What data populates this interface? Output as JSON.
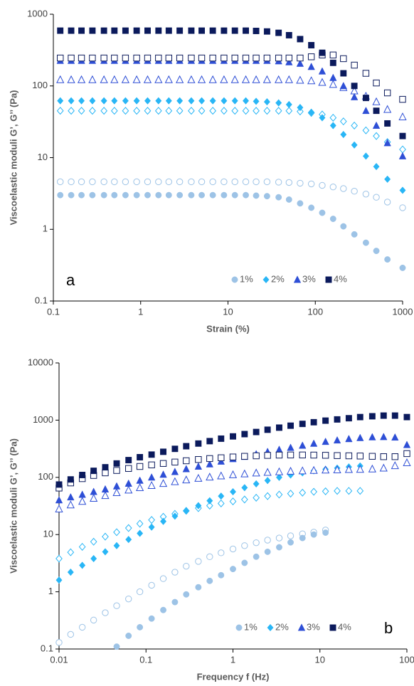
{
  "chart_data": [
    {
      "type": "scatter",
      "panel_label": "a",
      "xlabel": "Strain (%)",
      "ylabel": "Viscoelastic moduli G’, G’’ (Pa)",
      "log_x": true,
      "log_y": true,
      "legend": "lower right",
      "xlim": [
        0.1,
        1000
      ],
      "ylim": [
        0.1,
        1000
      ],
      "xticks": [
        0.1,
        1,
        10,
        100,
        1000
      ],
      "yticks": [
        0.1,
        1,
        10,
        100,
        1000
      ],
      "x": [
        0.12,
        0.16,
        0.21,
        0.28,
        0.38,
        0.5,
        0.67,
        0.9,
        1.2,
        1.6,
        2.1,
        2.8,
        3.8,
        5,
        6.7,
        9,
        12,
        16,
        21,
        28,
        38,
        50,
        67,
        90,
        120,
        160,
        210,
        280,
        380,
        500,
        670,
        1000
      ],
      "series": [
        {
          "name": "1%",
          "color": "#9dc3e6",
          "marker": "circle",
          "storage": [
            3,
            3,
            3,
            3,
            3,
            3,
            3,
            3,
            3,
            3,
            3,
            3,
            3,
            3,
            3,
            3,
            3,
            3,
            2.95,
            2.9,
            2.8,
            2.6,
            2.3,
            2,
            1.7,
            1.4,
            1.1,
            0.85,
            0.65,
            0.5,
            0.38,
            0.29
          ],
          "loss": [
            4.6,
            4.6,
            4.6,
            4.6,
            4.6,
            4.6,
            4.6,
            4.6,
            4.6,
            4.6,
            4.6,
            4.6,
            4.6,
            4.6,
            4.6,
            4.6,
            4.6,
            4.6,
            4.6,
            4.6,
            4.55,
            4.5,
            4.4,
            4.3,
            4.1,
            3.9,
            3.7,
            3.4,
            3.1,
            2.8,
            2.4,
            2
          ]
        },
        {
          "name": "2%",
          "color": "#29b6f6",
          "marker": "diamond",
          "storage": [
            62,
            62,
            62,
            62,
            62,
            62,
            62,
            62,
            62,
            62,
            62,
            62,
            62,
            62,
            62,
            62,
            62,
            62,
            61,
            60,
            58,
            55,
            50,
            43,
            36,
            28,
            21,
            15,
            10.5,
            7.5,
            5,
            3.5
          ],
          "loss": [
            45,
            45,
            45,
            45,
            45,
            45,
            45,
            45,
            45,
            45,
            45,
            45,
            45,
            45,
            45,
            45,
            45,
            45,
            45,
            45,
            45,
            45,
            44,
            42,
            40,
            36,
            32,
            28,
            24,
            20,
            16.5,
            13
          ]
        },
        {
          "name": "3%",
          "color": "#2e4fd6",
          "marker": "triangle",
          "storage": [
            225,
            225,
            225,
            225,
            225,
            225,
            225,
            225,
            225,
            225,
            225,
            225,
            225,
            225,
            225,
            225,
            225,
            225,
            225,
            225,
            222,
            215,
            205,
            185,
            160,
            130,
            100,
            70,
            45,
            28,
            16,
            10.5
          ],
          "loss": [
            122,
            122,
            122,
            122,
            122,
            122,
            122,
            122,
            122,
            122,
            122,
            122,
            122,
            122,
            122,
            122,
            122,
            122,
            122,
            122,
            122,
            122,
            120,
            118,
            112,
            105,
            95,
            85,
            72,
            60,
            47,
            37
          ]
        },
        {
          "name": "4%",
          "color": "#0b1a5c",
          "marker": "square",
          "storage": [
            590,
            590,
            590,
            590,
            590,
            590,
            590,
            590,
            590,
            590,
            590,
            590,
            590,
            590,
            590,
            590,
            590,
            590,
            585,
            575,
            550,
            510,
            450,
            370,
            290,
            210,
            150,
            100,
            68,
            45,
            30,
            20
          ],
          "loss": [
            245,
            245,
            245,
            245,
            245,
            245,
            245,
            245,
            245,
            245,
            245,
            245,
            245,
            245,
            245,
            245,
            245,
            245,
            245,
            245,
            245,
            245,
            245,
            255,
            270,
            270,
            240,
            195,
            150,
            110,
            80,
            65
          ]
        }
      ]
    },
    {
      "type": "scatter",
      "panel_label": "b",
      "xlabel": "Frequency f (Hz)",
      "ylabel": "Viscoelastic moduli G’, G’’ (Pa)",
      "log_x": true,
      "log_y": true,
      "legend": "lower right",
      "xlim": [
        0.01,
        100
      ],
      "ylim": [
        0.1,
        10000
      ],
      "xticks": [
        0.01,
        0.1,
        1,
        10,
        100
      ],
      "yticks": [
        0.1,
        1,
        10,
        100,
        1000,
        10000
      ],
      "x": [
        0.01,
        0.0136,
        0.0185,
        0.025,
        0.034,
        0.046,
        0.063,
        0.085,
        0.116,
        0.158,
        0.215,
        0.29,
        0.4,
        0.54,
        0.73,
        1,
        1.36,
        1.85,
        2.5,
        3.4,
        4.6,
        6.3,
        8.5,
        11.6,
        15.8,
        21.5,
        29,
        40,
        54,
        73,
        100
      ],
      "series": [
        {
          "name": "1%",
          "color": "#9dc3e6",
          "marker": "circle",
          "storage": [
            null,
            null,
            null,
            null,
            null,
            0.11,
            0.17,
            0.24,
            0.34,
            0.48,
            0.66,
            0.9,
            1.2,
            1.55,
            1.95,
            2.5,
            3.2,
            4.1,
            5,
            6,
            7.3,
            8.7,
            10,
            10.8,
            null,
            null,
            null,
            null,
            null,
            null,
            null
          ],
          "loss": [
            0.13,
            0.18,
            0.24,
            0.32,
            0.43,
            0.57,
            0.75,
            1,
            1.3,
            1.7,
            2.2,
            2.8,
            3.4,
            4.1,
            4.8,
            5.6,
            6.4,
            7.2,
            8,
            8.7,
            9.5,
            10.3,
            11,
            12,
            null,
            null,
            null,
            null,
            null,
            null,
            null
          ]
        },
        {
          "name": "2%",
          "color": "#29b6f6",
          "marker": "diamond",
          "storage": [
            1.6,
            2.2,
            2.9,
            3.8,
            5,
            6.4,
            8.2,
            10.5,
            13.5,
            17,
            21,
            26,
            32,
            39,
            47,
            56,
            66,
            77,
            88,
            100,
            110,
            120,
            130,
            138,
            145,
            152,
            158,
            null,
            null,
            null,
            null
          ],
          "loss": [
            3.8,
            4.9,
            6.1,
            7.5,
            9.2,
            11,
            13,
            15.5,
            18,
            20.5,
            23,
            26,
            29,
            32,
            35,
            38,
            41,
            44,
            47,
            50,
            52,
            54,
            56,
            57,
            58,
            58,
            58,
            null,
            null,
            null,
            null
          ]
        },
        {
          "name": "3%",
          "color": "#2e4fd6",
          "marker": "triangle",
          "storage": [
            40,
            45,
            50,
            56,
            62,
            70,
            78,
            88,
            100,
            112,
            125,
            140,
            155,
            170,
            190,
            210,
            230,
            255,
            280,
            305,
            330,
            360,
            390,
            420,
            445,
            470,
            490,
            505,
            510,
            500,
            370
          ],
          "loss": [
            28,
            33,
            38,
            43,
            48,
            54,
            60,
            66,
            72,
            78,
            84,
            90,
            96,
            101,
            106,
            111,
            115,
            119,
            122,
            125,
            128,
            130,
            132,
            134,
            135,
            137,
            138,
            140,
            145,
            160,
            180
          ]
        },
        {
          "name": "4%",
          "color": "#0b1a5c",
          "marker": "square",
          "storage": [
            75,
            92,
            110,
            130,
            150,
            175,
            200,
            225,
            250,
            280,
            315,
            350,
            390,
            430,
            475,
            520,
            570,
            620,
            680,
            740,
            800,
            860,
            920,
            980,
            1030,
            1080,
            1130,
            1170,
            1200,
            1200,
            1130
          ],
          "loss": [
            65,
            80,
            95,
            108,
            120,
            132,
            143,
            155,
            165,
            175,
            185,
            195,
            205,
            213,
            220,
            227,
            233,
            238,
            242,
            245,
            246,
            246,
            245,
            243,
            240,
            238,
            236,
            233,
            230,
            230,
            260
          ]
        }
      ]
    }
  ]
}
